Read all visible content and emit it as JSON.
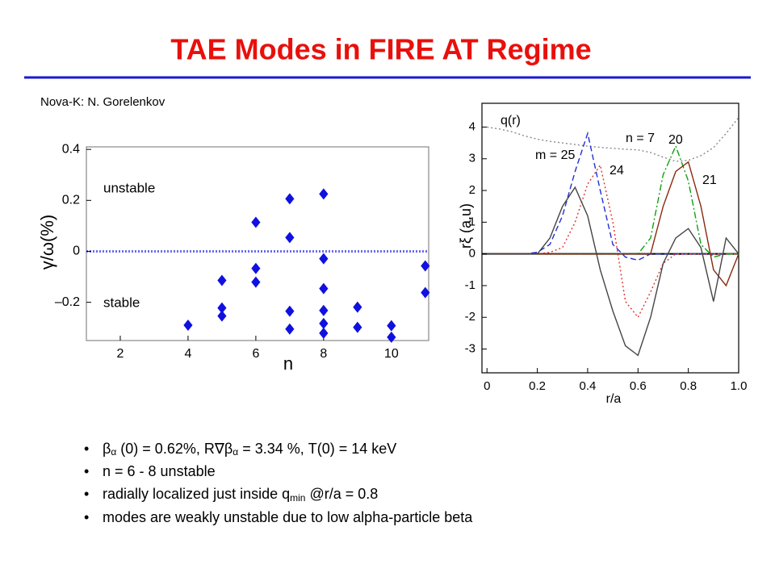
{
  "title": "TAE Modes in FIRE AT Regime",
  "credit": "Nova-K: N. Gorelenkov",
  "bullets": [
    [
      "β",
      "α",
      " (0) = 0.62%, R∇β",
      "α",
      " = 3.34 %, T(0) = 14 keV"
    ],
    [
      "n = 6 - 8 unstable"
    ],
    [
      "radially localized just inside q",
      "min",
      " @r/a = 0.8"
    ],
    [
      "modes are weakly unstable due to low alpha-particle beta"
    ]
  ],
  "chart_data": [
    {
      "type": "scatter",
      "xlabel": "n",
      "ylabel": "γ/ω(%)",
      "color": "#1010e0",
      "x": [
        4,
        5,
        5,
        5,
        6,
        6,
        6,
        7,
        7,
        7,
        7,
        8,
        8,
        8,
        8,
        8,
        8,
        9,
        9,
        10,
        10,
        11,
        11
      ],
      "values": [
        -0.29,
        -0.114,
        -0.222,
        -0.254,
        0.114,
        -0.067,
        -0.121,
        0.206,
        0.054,
        -0.235,
        -0.305,
        0.225,
        -0.029,
        -0.146,
        -0.232,
        -0.283,
        -0.321,
        -0.219,
        -0.298,
        -0.292,
        -0.337,
        -0.057,
        -0.162
      ],
      "xlim": [
        1,
        11.1
      ],
      "ylim": [
        -0.35,
        0.41
      ],
      "xticks": [
        2,
        4,
        6,
        8,
        10
      ],
      "yticks": [
        0.4,
        0.2,
        0,
        {
          "value": -0.2,
          "label": "–0.2"
        }
      ],
      "reference_line": 0,
      "annotations": [
        "unstable",
        "stable"
      ]
    },
    {
      "type": "line",
      "xlabel": "r/a",
      "ylabel": "rξ (a.u)",
      "x": [
        0,
        0.05,
        0.1,
        0.15,
        0.2,
        0.25,
        0.3,
        0.35,
        0.4,
        0.45,
        0.5,
        0.55,
        0.6,
        0.65,
        0.7,
        0.75,
        0.8,
        0.85,
        0.9,
        0.95,
        1.0
      ],
      "series": [
        {
          "name": "q(r)",
          "color": "#888888",
          "values": [
            4.0,
            3.94,
            3.85,
            3.72,
            3.62,
            3.55,
            3.5,
            3.45,
            3.4,
            3.36,
            3.33,
            3.3,
            3.28,
            3.2,
            3.05,
            2.92,
            2.95,
            3.1,
            3.35,
            3.8,
            4.3
          ]
        },
        {
          "name": "m = 25",
          "color": "#2030d0",
          "values": [
            0,
            0,
            0,
            0,
            0.05,
            0.3,
            1.2,
            2.6,
            3.8,
            2.0,
            0.3,
            -0.1,
            -0.2,
            0,
            0,
            0,
            0,
            0,
            0,
            0,
            0
          ]
        },
        {
          "name": "24",
          "color": "#e03030",
          "values": [
            0,
            0,
            0,
            0,
            0,
            0.05,
            0.2,
            1.0,
            2.2,
            2.8,
            1.0,
            -1.5,
            -2.0,
            -1.2,
            -0.3,
            0,
            0,
            0,
            0,
            0,
            0
          ]
        },
        {
          "name": "20",
          "color": "#10a010",
          "values": [
            0,
            0,
            0,
            0,
            0,
            0,
            0,
            0,
            0,
            0,
            0,
            0,
            0,
            0.5,
            2.5,
            3.4,
            2.3,
            0.3,
            -0.1,
            0,
            0
          ]
        },
        {
          "name": "21",
          "color": "#8b2a10",
          "values": [
            0,
            0,
            0,
            0,
            0,
            0,
            0,
            0,
            0,
            0,
            0,
            0,
            0,
            0,
            1.5,
            2.6,
            2.9,
            1.5,
            -0.5,
            -1.0,
            0
          ]
        },
        {
          "color": "#444444",
          "values": [
            0,
            0,
            0,
            0,
            0,
            0.5,
            1.5,
            2.1,
            1.2,
            -0.5,
            -1.8,
            -2.9,
            -3.2,
            -2.0,
            -0.3,
            0.5,
            0.8,
            0.2,
            -1.5,
            0.5,
            0
          ]
        }
      ],
      "xlim": [
        -0.02,
        1.0
      ],
      "ylim": [
        -3.75,
        4.75
      ],
      "xticks": [
        0,
        0.2,
        0.4,
        0.6,
        0.8,
        {
          "value": 1.0,
          "label": "1.0"
        }
      ],
      "yticks": [
        4,
        3,
        2,
        1,
        0,
        -1,
        -2,
        -3
      ],
      "reference_line": 0,
      "annotations": [
        "n = 7"
      ]
    }
  ]
}
